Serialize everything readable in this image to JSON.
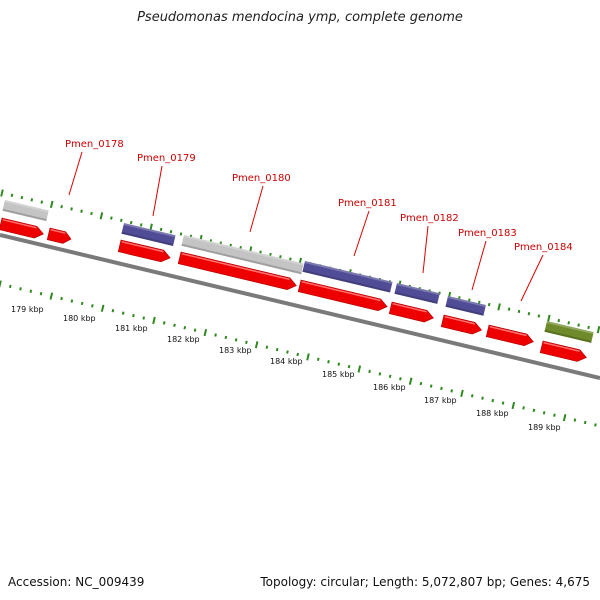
{
  "title": "Pseudomonas mendocina ymp, complete genome",
  "footer": {
    "accession": "Accession: NC_009439",
    "summary": "Topology: circular; Length: 5,072,807 bp; Genes: 4,675"
  },
  "colors": {
    "cds": "#ee0000",
    "gray_feature": "#c4c4c4",
    "blue_feature": "#504c96",
    "green_feature": "#6e8a2a",
    "backbone": "#7a7a7a",
    "tick": "#2e8a1e",
    "label": "#cc0000"
  },
  "kbp_labels": [
    "179 kbp",
    "180 kbp",
    "181 kbp",
    "182 kbp",
    "183 kbp",
    "184 kbp",
    "185 kbp",
    "186 kbp",
    "187 kbp",
    "188 kbp",
    "189 kbp"
  ],
  "gene_labels": [
    "Pmen_0178",
    "Pmen_0179",
    "Pmen_0180",
    "Pmen_0181",
    "Pmen_0182",
    "Pmen_0183",
    "Pmen_0184"
  ]
}
